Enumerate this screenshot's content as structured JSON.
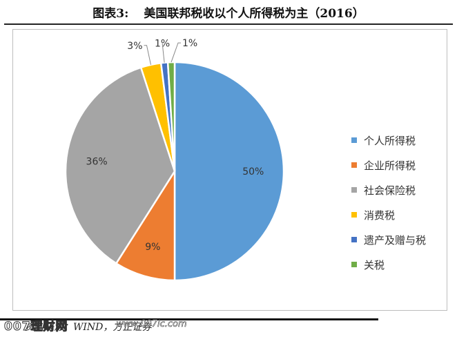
{
  "header": {
    "figure_label": "图表3:",
    "title": "美国联邦税收以个人所得税为主（2016）"
  },
  "chart_data": {
    "type": "pie",
    "title": "",
    "legend_position": "right",
    "slices": [
      {
        "label": "个人所得税",
        "value": 50,
        "value_label": "50%",
        "color": "#5B9BD5"
      },
      {
        "label": "企业所得税",
        "value": 9,
        "value_label": "9%",
        "color": "#ED7D31"
      },
      {
        "label": "社会保险税",
        "value": 36,
        "value_label": "36%",
        "color": "#A5A5A5"
      },
      {
        "label": "消费税",
        "value": 3,
        "value_label": "3%",
        "color": "#FFC000"
      },
      {
        "label": "遗产及赠与税",
        "value": 1,
        "value_label": "1%",
        "color": "#4472C4"
      },
      {
        "label": "关税",
        "value": 1,
        "value_label": "1%",
        "color": "#70AD47"
      }
    ]
  },
  "footer": {
    "source": "资料来源：WIND，方正证券",
    "watermark": "007理财网",
    "watermark_url": "www.007lc.com"
  }
}
